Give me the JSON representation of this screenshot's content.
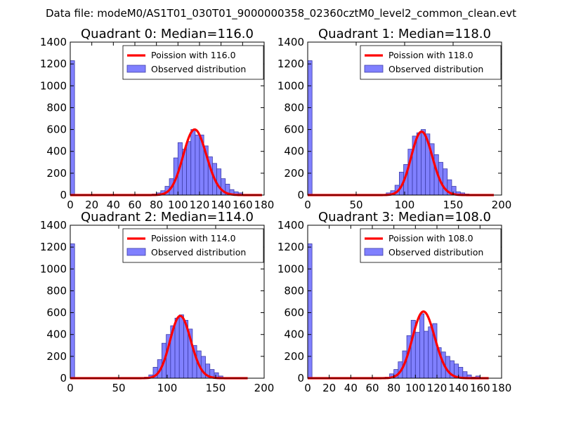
{
  "figure": {
    "suptitle": "Data file: modeM0/AS1T01_030T01_9000000358_02360cztM0_level2_common_clean.evt"
  },
  "colors": {
    "poisson": "#ff0000",
    "hist_fill": "#8080ff",
    "hist_edge": "#3c3ca8"
  },
  "chart_data": [
    {
      "type": "bar",
      "title": "Quadrant 0: Median=116.0",
      "xlim": [
        0,
        180
      ],
      "ylim": [
        0,
        1400
      ],
      "xticks": [
        0,
        20,
        40,
        60,
        80,
        100,
        120,
        140,
        160,
        180
      ],
      "yticks": [
        0,
        200,
        400,
        600,
        800,
        1000,
        1200,
        1400
      ],
      "legend": [
        "Poission with 116.0",
        "Observed distribution"
      ],
      "bin_width": 4,
      "bin_starts": [
        0,
        76,
        80,
        84,
        88,
        92,
        96,
        100,
        104,
        108,
        112,
        116,
        120,
        124,
        128,
        132,
        136,
        140,
        144,
        148,
        152,
        156,
        160
      ],
      "values": [
        1230,
        10,
        20,
        40,
        80,
        150,
        340,
        480,
        420,
        490,
        600,
        550,
        550,
        450,
        350,
        290,
        240,
        150,
        100,
        50,
        30,
        20,
        5
      ],
      "poisson": {
        "mean": 116.0,
        "peak": 600,
        "x_start": 0,
        "x_end": 178
      }
    },
    {
      "type": "bar",
      "title": "Quadrant 1: Median=118.0",
      "xlim": [
        0,
        200
      ],
      "ylim": [
        0,
        1400
      ],
      "xticks": [
        0,
        50,
        100,
        150,
        200
      ],
      "yticks": [
        0,
        200,
        400,
        600,
        800,
        1000,
        1200,
        1400
      ],
      "legend": [
        "Poission with 118.0",
        "Observed distribution"
      ],
      "bin_width": 4.5,
      "bin_starts": [
        0,
        81,
        85.5,
        90,
        94.5,
        99,
        103.5,
        108,
        112.5,
        117,
        121.5,
        126,
        130.5,
        135,
        139.5,
        144,
        148.5,
        153,
        157.5,
        162
      ],
      "values": [
        1230,
        20,
        40,
        90,
        210,
        280,
        420,
        540,
        570,
        600,
        560,
        470,
        370,
        300,
        240,
        140,
        80,
        30,
        20,
        10
      ],
      "poisson": {
        "mean": 118.0,
        "peak": 580,
        "x_start": 0,
        "x_end": 192
      }
    },
    {
      "type": "bar",
      "title": "Quadrant 2: Median=114.0",
      "xlim": [
        0,
        200
      ],
      "ylim": [
        0,
        1400
      ],
      "xticks": [
        0,
        50,
        100,
        150,
        200
      ],
      "yticks": [
        0,
        200,
        400,
        600,
        800,
        1000,
        1200,
        1400
      ],
      "legend": [
        "Poission with 114.0",
        "Observed distribution"
      ],
      "bin_width": 4.5,
      "bin_starts": [
        0,
        76.5,
        81,
        85.5,
        90,
        94.5,
        99,
        103.5,
        108,
        112.5,
        117,
        121.5,
        126,
        130.5,
        135,
        139.5,
        144,
        148.5,
        153
      ],
      "values": [
        1230,
        10,
        30,
        100,
        170,
        320,
        400,
        480,
        550,
        580,
        530,
        450,
        300,
        250,
        200,
        130,
        80,
        50,
        20
      ],
      "poisson": {
        "mean": 114.0,
        "peak": 570,
        "x_start": 0,
        "x_end": 183
      }
    },
    {
      "type": "bar",
      "title": "Quadrant 3: Median=108.0",
      "xlim": [
        0,
        180
      ],
      "ylim": [
        0,
        1400
      ],
      "xticks": [
        0,
        20,
        40,
        60,
        80,
        100,
        120,
        140,
        160,
        180
      ],
      "yticks": [
        0,
        200,
        400,
        600,
        800,
        1000,
        1200,
        1400
      ],
      "legend": [
        "Poission with 108.0",
        "Observed distribution"
      ],
      "bin_width": 4,
      "bin_starts": [
        0,
        72,
        76,
        80,
        84,
        88,
        92,
        96,
        100,
        104,
        108,
        112,
        116,
        120,
        124,
        128,
        132,
        136,
        140,
        144,
        148,
        152,
        156,
        160
      ],
      "values": [
        1230,
        10,
        40,
        80,
        150,
        250,
        390,
        530,
        420,
        590,
        430,
        470,
        500,
        280,
        240,
        200,
        160,
        130,
        100,
        60,
        30,
        10,
        20,
        5
      ],
      "poisson": {
        "mean": 108.0,
        "peak": 610,
        "x_start": 0,
        "x_end": 168
      }
    }
  ]
}
